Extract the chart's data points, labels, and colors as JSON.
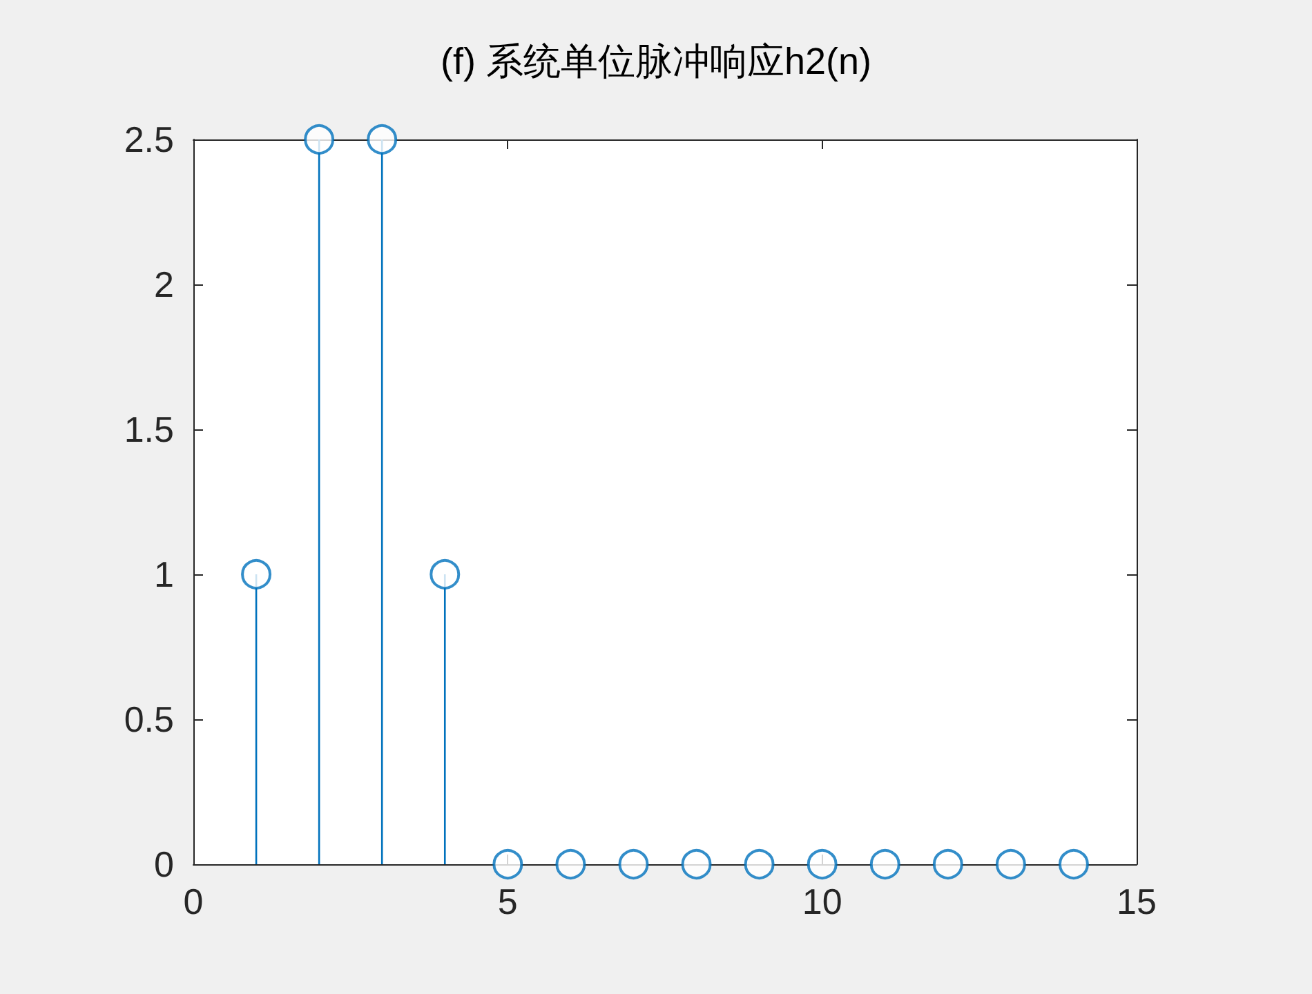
{
  "chart_data": {
    "type": "lollipop",
    "title": "(f) 系统单位脉冲响应h2(n)",
    "x": [
      1,
      2,
      3,
      4,
      5,
      6,
      7,
      8,
      9,
      10,
      11,
      12,
      13,
      14
    ],
    "series": [
      {
        "color": "#0072bd",
        "values": [
          1,
          2.5,
          2.5,
          1,
          0,
          0,
          0,
          0,
          0,
          0,
          0,
          0,
          0,
          0
        ]
      }
    ],
    "xlim": [
      0,
      15
    ],
    "xticks": [
      0,
      5,
      10,
      15
    ],
    "ylim": [
      0,
      2.5
    ],
    "yticks": [
      0,
      0.5,
      1,
      1.5,
      2,
      2.5
    ],
    "grid": false,
    "marker": "circle"
  }
}
